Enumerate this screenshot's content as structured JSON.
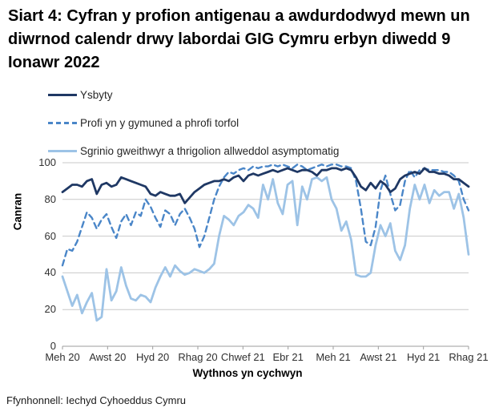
{
  "title": "Siart 4: Cyfran y profion antigenau a awdurdodwyd mewn un diwrnod calendr drwy labordai GIG Cymru erbyn diwedd 9 Ionawr 2022",
  "source": "Ffynhonnell: Iechyd Cyhoeddus Cymru",
  "chart_data": {
    "type": "line",
    "title": "Siart 4: Cyfran y profion antigenau a awdurdodwyd mewn un diwrnod calendr drwy labordai GIG Cymru erbyn diwedd 9 Ionawr 2022",
    "xlabel": "Wythnos yn cychwyn",
    "ylabel": "Canran",
    "ylim": [
      0,
      100
    ],
    "yticks": [
      0,
      20,
      40,
      60,
      80,
      100
    ],
    "xticklabels": [
      "Meh 20",
      "Awst 20",
      "Hyd 20",
      "Rhag 20",
      "Chwef 21",
      "Ebr 21",
      "Meh 21",
      "Awst 21",
      "Hyd 21",
      "Rhag 21"
    ],
    "x_unit": "week",
    "grid": true,
    "legend_position": "top-left",
    "colors": {
      "grid": "#C9C9C9",
      "axis": "#9E9E9E"
    },
    "series": [
      {
        "name": "Ysbyty",
        "color": "#1F3864",
        "style": "solid",
        "values": [
          84,
          86,
          88,
          88,
          87,
          90,
          91,
          83,
          88,
          89,
          87,
          88,
          92,
          91,
          90,
          89,
          88,
          87,
          83,
          82,
          84,
          83,
          82,
          82,
          83,
          78,
          81,
          84,
          86,
          88,
          89,
          90,
          90,
          91,
          90,
          92,
          93,
          90,
          93,
          94,
          93,
          94,
          95,
          96,
          95,
          96,
          97,
          96,
          95,
          96,
          96,
          95,
          93,
          96,
          96,
          97,
          97,
          96,
          97,
          96,
          92,
          87,
          85,
          89,
          86,
          90,
          88,
          84,
          86,
          91,
          93,
          94,
          95,
          94,
          97,
          95,
          95,
          94,
          94,
          93,
          91,
          91,
          89,
          87
        ]
      },
      {
        "name": "Profi yn y gymuned a phrofi torfol",
        "color": "#4A86C8",
        "style": "dashed",
        "values": [
          44,
          53,
          52,
          57,
          65,
          73,
          70,
          64,
          69,
          72,
          65,
          59,
          68,
          72,
          66,
          73,
          71,
          80,
          76,
          70,
          65,
          74,
          72,
          66,
          72,
          75,
          70,
          64,
          54,
          60,
          70,
          80,
          87,
          92,
          95,
          94,
          96,
          97,
          96,
          98,
          97,
          98,
          98,
          99,
          98,
          99,
          98,
          97,
          99,
          98,
          96,
          97,
          98,
          99,
          98,
          99,
          99,
          98,
          98,
          97,
          90,
          75,
          57,
          55,
          65,
          85,
          93,
          83,
          74,
          77,
          90,
          96,
          92,
          96,
          97,
          96,
          96,
          96,
          95,
          95,
          93,
          90,
          80,
          74
        ]
      },
      {
        "name": "Sgrinio gweithwyr a thrigolion allweddol asymptomatig",
        "color": "#9DC3E6",
        "style": "solid",
        "values": [
          38,
          30,
          22,
          28,
          18,
          24,
          29,
          14,
          16,
          42,
          25,
          30,
          43,
          33,
          26,
          25,
          28,
          27,
          24,
          32,
          38,
          43,
          38,
          44,
          41,
          39,
          40,
          42,
          41,
          40,
          42,
          45,
          60,
          71,
          69,
          66,
          71,
          73,
          77,
          75,
          70,
          88,
          80,
          91,
          78,
          72,
          88,
          90,
          66,
          87,
          80,
          91,
          92,
          90,
          92,
          80,
          75,
          63,
          68,
          58,
          39,
          38,
          38,
          40,
          55,
          66,
          60,
          67,
          52,
          47,
          55,
          75,
          88,
          80,
          88,
          78,
          85,
          82,
          84,
          84,
          75,
          83,
          70,
          50
        ]
      }
    ]
  }
}
